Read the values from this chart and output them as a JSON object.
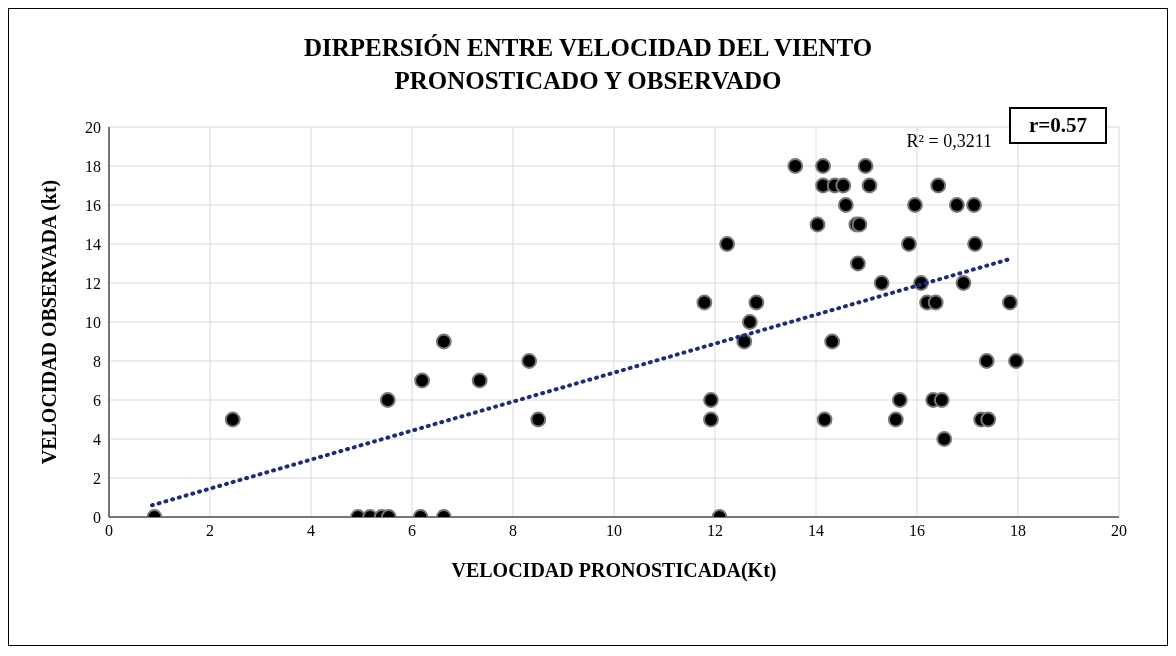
{
  "chart_data": {
    "type": "scatter",
    "title": "DIRPERSIÓN ENTRE VELOCIDAD DEL VIENTO PRONOSTICADO Y OBSERVADO",
    "xlabel": "VELOCIDAD PRONOSTICADA(Kt)",
    "ylabel": "VELOCIDAD OBSERVADA (kt)",
    "annotations": [
      "R² = 0,3211",
      "r=0.57"
    ],
    "xlim": [
      0,
      20
    ],
    "xticks": [
      0,
      2,
      4,
      6,
      8,
      10,
      12,
      14,
      16,
      18,
      20
    ],
    "ylim": [
      0,
      20
    ],
    "yticks": [
      0,
      2,
      4,
      6,
      8,
      10,
      12,
      14,
      16,
      18,
      20
    ],
    "grid": true,
    "marker": "circle",
    "series": [
      {
        "color": "#000000",
        "x": [
          0.9,
          2.45,
          4.93,
          5.17,
          5.4,
          5.54,
          5.52,
          6.17,
          6.2,
          6.63,
          6.63,
          7.34,
          8.32,
          8.5,
          11.79,
          12.24,
          12.82,
          12.69,
          12.58,
          11.92,
          11.92,
          12.09,
          13.59,
          14.14,
          14.98,
          14.14,
          14.37,
          14.54,
          15.06,
          16.42,
          14.59,
          15.96,
          16.79,
          17.13,
          14.03,
          14.8,
          14.86,
          15.84,
          17.15,
          14.83,
          15.3,
          16.08,
          16.92,
          16.2,
          16.37,
          17.84,
          14.32,
          17.38,
          17.96,
          15.66,
          16.32,
          16.49,
          14.17,
          15.58,
          17.27,
          17.41,
          16.54
        ],
        "values": [
          0,
          5,
          0,
          0,
          0,
          0,
          6,
          0,
          7,
          0,
          9,
          7,
          8,
          5,
          11,
          14,
          11,
          10,
          9,
          6,
          5,
          0,
          18,
          18,
          18,
          17,
          17,
          17,
          17,
          17,
          16,
          16,
          16,
          16,
          15,
          15,
          15,
          14,
          14,
          13,
          12,
          12,
          12,
          11,
          11,
          11,
          9,
          8,
          8,
          6,
          6,
          6,
          5,
          5,
          5,
          5,
          4
        ]
      },
      {
        "type": "line",
        "color": "#1f2a7a",
        "line_style": "dotted",
        "marker": "none",
        "x": [
          0.85,
          17.8
        ],
        "values": [
          0.6,
          13.2
        ]
      }
    ]
  }
}
